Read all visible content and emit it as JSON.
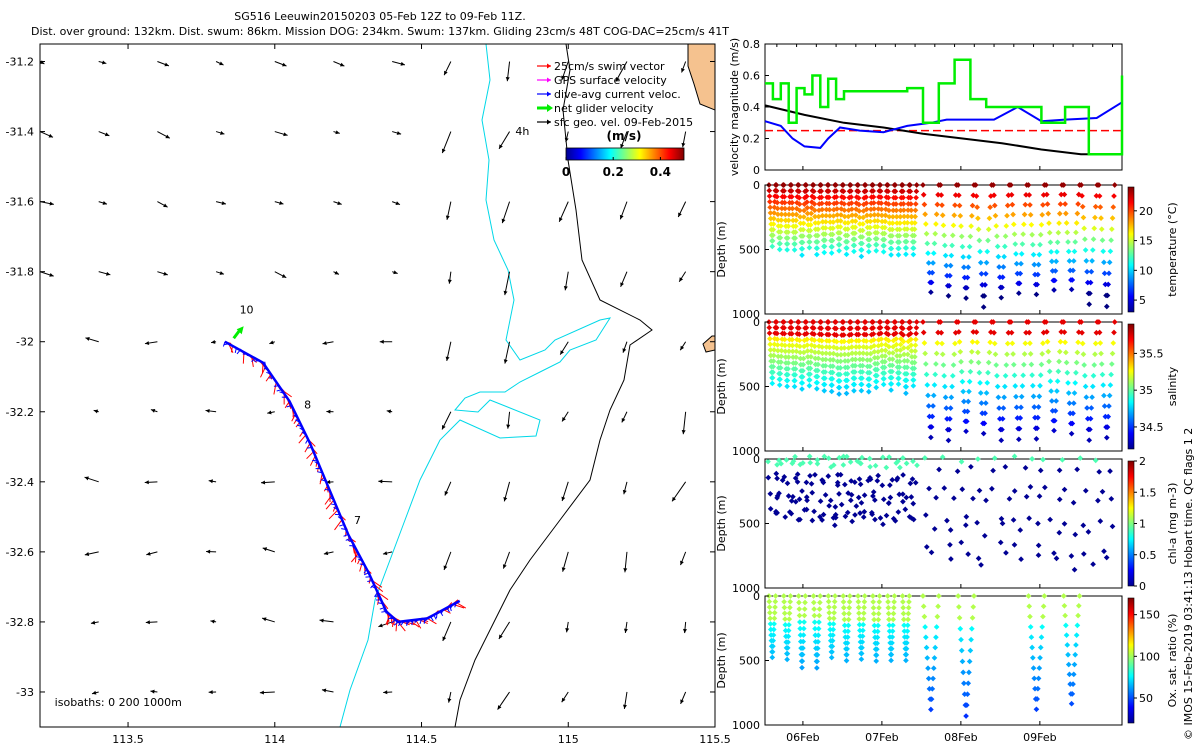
{
  "header": {
    "title_line1": "SG516 Leeuwin20150203 05-Feb 12Z to 09-Feb 11Z.",
    "title_line2": "Dist. over ground: 132km. Dist. swum: 86km. Mission DOG: 234km. Swum: 137km. Gliding 23cm/s 48T COG-DAC=25cm/s 41T"
  },
  "colors": {
    "coast_fill": "#f5c28f",
    "isobath": "#00d8e8",
    "track_swim": "#ff0000",
    "track_dac": "#0000ff",
    "net_velocity": "#00ee00",
    "gps_velocity": "#ff00ff",
    "geostrophic": "#000000"
  },
  "chart_data": [
    {
      "id": "map",
      "type": "scatter",
      "xlim": [
        113.2,
        115.5
      ],
      "ylim": [
        -33.1,
        -31.15
      ],
      "x_ticks": [
        "113.5",
        "114",
        "114.5",
        "115",
        "115.5"
      ],
      "y_ticks": [
        "-31.2",
        "-31.4",
        "-31.6",
        "-31.8",
        "-32",
        "-32.2",
        "-32.4",
        "-32.6",
        "-32.8",
        "-33"
      ],
      "legend": {
        "entries": [
          {
            "label": "25cm/s swim vector",
            "color": "#ff0000",
            "marker": "arrow"
          },
          {
            "label": "GPS surface velocity",
            "color": "#ff00ff",
            "marker": "arrow"
          },
          {
            "label": "dive-avg current veloc.",
            "color": "#0000ff",
            "marker": "arrow"
          },
          {
            "label": "net glider velocity",
            "color": "#00ee00",
            "marker": "thick-arrow"
          },
          {
            "label": "sfc geo. vel. 09-Feb-2015",
            "color": "#000000",
            "marker": "arrow"
          }
        ],
        "placement": "top-right"
      },
      "colorbar": {
        "title": "(m/s)",
        "ticks": [
          "0",
          "0.2",
          "0.4"
        ],
        "range": [
          0,
          0.5
        ]
      },
      "annotations": [
        {
          "text": "4h",
          "x": 114.82,
          "y": -31.41
        },
        {
          "text": "10",
          "x": 113.88,
          "y": -31.92
        },
        {
          "text": "8",
          "x": 114.1,
          "y": -32.19
        },
        {
          "text": "7",
          "x": 114.27,
          "y": -32.52
        },
        {
          "text": "isobaths: 0   200   1000m",
          "x": 113.25,
          "y": -33.04
        }
      ],
      "track": [
        [
          113.83,
          -32.0
        ],
        [
          113.96,
          -32.06
        ],
        [
          114.05,
          -32.17
        ],
        [
          114.12,
          -32.29
        ],
        [
          114.18,
          -32.41
        ],
        [
          114.25,
          -32.55
        ],
        [
          114.32,
          -32.66
        ],
        [
          114.38,
          -32.77
        ],
        [
          114.42,
          -32.8
        ],
        [
          114.52,
          -32.79
        ],
        [
          114.63,
          -32.74
        ]
      ],
      "net_velocity_arrow": {
        "x": 113.86,
        "y": -31.99,
        "u": 0.03,
        "v": 0.04
      }
    },
    {
      "id": "velocity",
      "type": "line",
      "ylabel": "velocity magnitude (m/s)",
      "ylim": [
        0,
        0.8
      ],
      "y_ticks": [
        "0",
        "0.2",
        "0.4",
        "0.6",
        "0.8"
      ],
      "xlim": [
        0,
        4.52
      ],
      "series": [
        {
          "color": "#ff0000",
          "style": "dash",
          "x": [
            0,
            4.52
          ],
          "y": [
            0.25,
            0.25
          ]
        },
        {
          "color": "#000000",
          "x": [
            0,
            0.5,
            1.0,
            1.5,
            2.0,
            2.5,
            3.0,
            3.5,
            4.0,
            4.52
          ],
          "y": [
            0.41,
            0.35,
            0.3,
            0.27,
            0.23,
            0.2,
            0.17,
            0.13,
            0.1,
            0.1
          ]
        },
        {
          "color": "#0000ff",
          "x": [
            0,
            0.2,
            0.35,
            0.5,
            0.7,
            0.8,
            0.95,
            1.2,
            1.5,
            1.8,
            2.1,
            2.3,
            2.6,
            2.9,
            3.2,
            3.5,
            3.8,
            4.2,
            4.52
          ],
          "y": [
            0.31,
            0.28,
            0.2,
            0.15,
            0.14,
            0.2,
            0.27,
            0.25,
            0.24,
            0.28,
            0.3,
            0.32,
            0.32,
            0.32,
            0.4,
            0.31,
            0.32,
            0.33,
            0.43
          ]
        },
        {
          "color": "#00ee00",
          "x": [
            0,
            0.1,
            0.2,
            0.3,
            0.4,
            0.5,
            0.6,
            0.7,
            0.8,
            0.9,
            1.0,
            1.2,
            1.4,
            1.6,
            1.8,
            2.0,
            2.2,
            2.4,
            2.6,
            2.8,
            3.0,
            3.2,
            3.5,
            3.8,
            4.1,
            4.3,
            4.52
          ],
          "y": [
            0.55,
            0.45,
            0.55,
            0.3,
            0.52,
            0.48,
            0.6,
            0.4,
            0.58,
            0.45,
            0.5,
            0.5,
            0.5,
            0.5,
            0.52,
            0.3,
            0.55,
            0.7,
            0.45,
            0.4,
            0.4,
            0.4,
            0.3,
            0.4,
            0.1,
            0.1,
            0.6
          ]
        }
      ]
    },
    {
      "id": "temperature",
      "type": "scatter",
      "ylabel": "Depth (m)",
      "y_ticks": [
        "0",
        "500",
        "1000"
      ],
      "colorbar_label": "temperature (°C)",
      "colorbar_ticks": [
        "5",
        "10",
        "15",
        "20"
      ],
      "colorbar_range": [
        3,
        24
      ]
    },
    {
      "id": "salinity",
      "type": "scatter",
      "ylabel": "Depth (m)",
      "y_ticks": [
        "0",
        "500",
        "1000"
      ],
      "colorbar_label": "salinity",
      "colorbar_ticks": [
        "34.5",
        "35",
        "35.5"
      ],
      "colorbar_range": [
        34.2,
        35.9
      ]
    },
    {
      "id": "chla",
      "type": "scatter",
      "ylabel": "Depth (m)",
      "y_ticks": [
        "0",
        "500",
        "1000"
      ],
      "colorbar_label": "chl-a (mg m-3)",
      "colorbar_ticks": [
        "0",
        "0.5",
        "1",
        "1.5",
        "2"
      ],
      "colorbar_range": [
        0,
        2
      ]
    },
    {
      "id": "oxygen",
      "type": "scatter",
      "ylabel": "Depth (m)",
      "y_ticks": [
        "0",
        "500",
        "1000"
      ],
      "x_ticks": [
        "06Feb",
        "07Feb",
        "08Feb",
        "09Feb"
      ],
      "colorbar_label": "Ox. sat. ratio (%)",
      "colorbar_ticks": [
        "50",
        "100",
        "150"
      ],
      "colorbar_range": [
        20,
        170
      ]
    }
  ],
  "profiles": {
    "x_range": [
      0,
      4.52
    ],
    "day_ticks": [
      0.48,
      1.48,
      2.48,
      3.48
    ],
    "phase1": {
      "x0": 0.05,
      "x1": 1.93,
      "count": 20,
      "max_depth": 560
    },
    "phase2": {
      "x0": 2.0,
      "x1": 4.45,
      "count": 11,
      "max_depth": 950
    }
  },
  "credit": "© IMOS 15-Feb-2019 03:41:13 Hobart time. QC flags 1 2"
}
